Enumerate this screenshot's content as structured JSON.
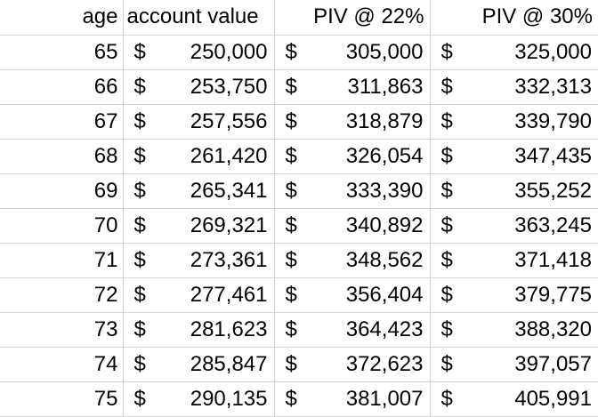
{
  "header": {
    "age": "age",
    "account_value": "account value",
    "piv_22": "PIV @ 22%",
    "piv_30": "PIV @ 30%"
  },
  "currency_symbol": "$",
  "rows": [
    {
      "age": "65",
      "account_value": "250,000",
      "piv_22": "305,000",
      "piv_30": "325,000"
    },
    {
      "age": "66",
      "account_value": "253,750",
      "piv_22": "311,863",
      "piv_30": "332,313"
    },
    {
      "age": "67",
      "account_value": "257,556",
      "piv_22": "318,879",
      "piv_30": "339,790"
    },
    {
      "age": "68",
      "account_value": "261,420",
      "piv_22": "326,054",
      "piv_30": "347,435"
    },
    {
      "age": "69",
      "account_value": "265,341",
      "piv_22": "333,390",
      "piv_30": "355,252"
    },
    {
      "age": "70",
      "account_value": "269,321",
      "piv_22": "340,892",
      "piv_30": "363,245"
    },
    {
      "age": "71",
      "account_value": "273,361",
      "piv_22": "348,562",
      "piv_30": "371,418"
    },
    {
      "age": "72",
      "account_value": "277,461",
      "piv_22": "356,404",
      "piv_30": "379,775"
    },
    {
      "age": "73",
      "account_value": "281,623",
      "piv_22": "364,423",
      "piv_30": "388,320"
    },
    {
      "age": "74",
      "account_value": "285,847",
      "piv_22": "372,623",
      "piv_30": "397,057"
    },
    {
      "age": "75",
      "account_value": "290,135",
      "piv_22": "381,007",
      "piv_30": "405,991"
    }
  ]
}
